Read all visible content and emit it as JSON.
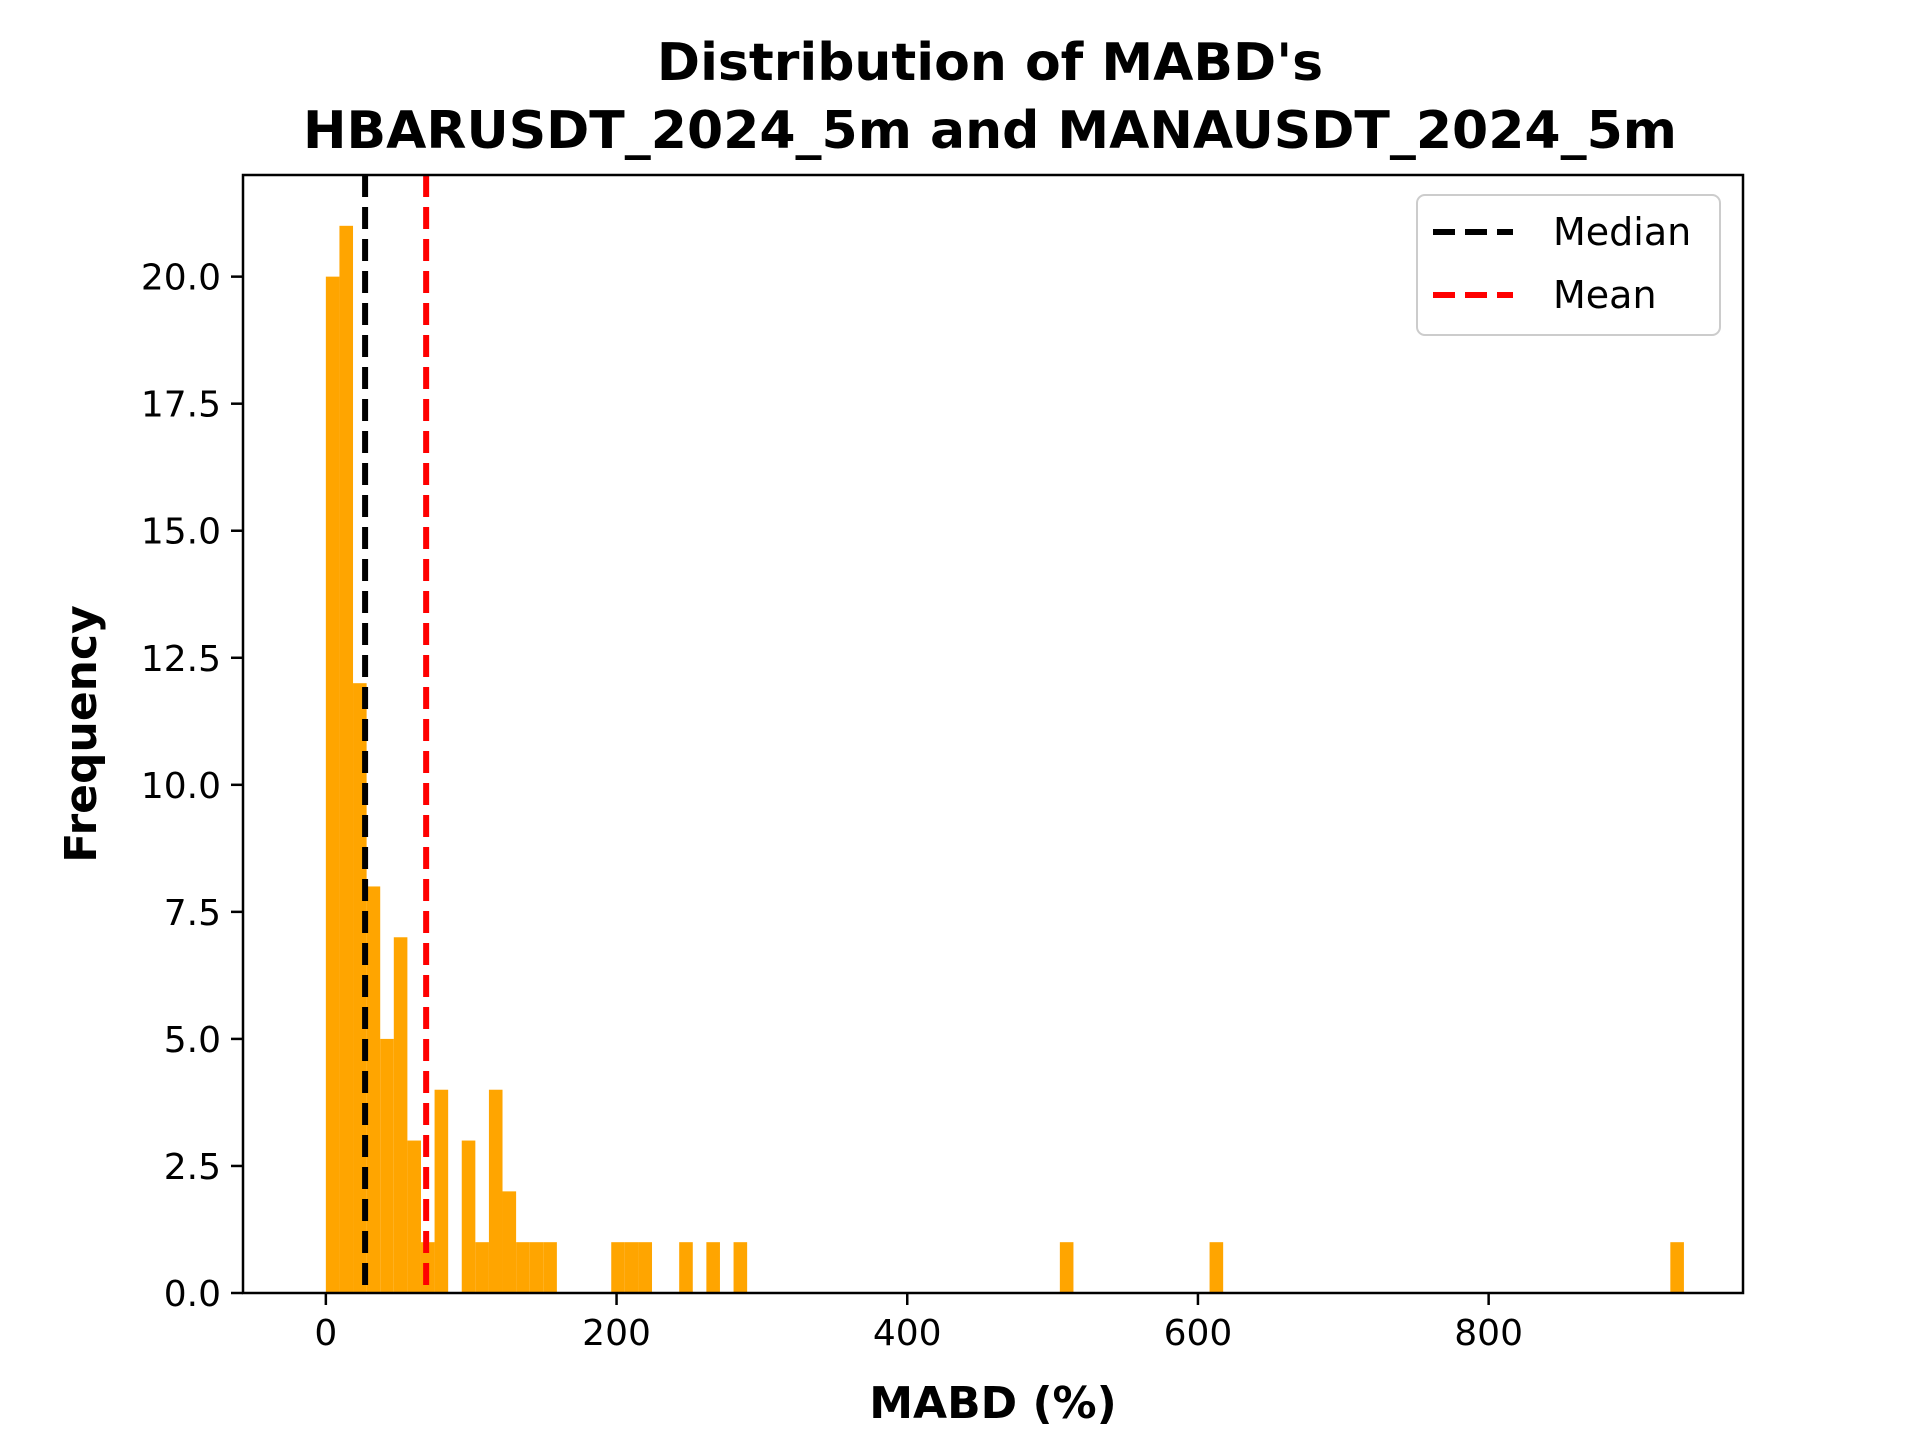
{
  "chart_data": {
    "type": "bar",
    "title_line1": "Distribution of MABD's",
    "title_line2": "HBARUSDT_2024_5m and MANAUSDT_2024_5m",
    "xlabel": "MABD (%)",
    "ylabel": "Frequency",
    "xlim": [
      -57,
      975
    ],
    "ylim": [
      0,
      22
    ],
    "x_ticks": [
      0,
      200,
      400,
      600,
      800
    ],
    "x_tick_labels": [
      "0",
      "200",
      "400",
      "600",
      "800"
    ],
    "y_ticks": [
      0,
      2.5,
      5,
      7.5,
      10,
      12.5,
      15,
      17.5,
      20
    ],
    "y_tick_labels": [
      "0.0",
      "2.5",
      "5.0",
      "7.5",
      "10.0",
      "12.5",
      "15.0",
      "17.5",
      "20.0"
    ],
    "bin_width": 9.35,
    "bar_color": "#FFA500",
    "bins": [
      {
        "x": 0.0,
        "count": 20
      },
      {
        "x": 9.35,
        "count": 21
      },
      {
        "x": 18.7,
        "count": 12
      },
      {
        "x": 28.05,
        "count": 8
      },
      {
        "x": 37.4,
        "count": 5
      },
      {
        "x": 46.75,
        "count": 7
      },
      {
        "x": 56.1,
        "count": 3
      },
      {
        "x": 65.45,
        "count": 1
      },
      {
        "x": 74.8,
        "count": 4
      },
      {
        "x": 93.5,
        "count": 3
      },
      {
        "x": 102.85,
        "count": 1
      },
      {
        "x": 112.2,
        "count": 4
      },
      {
        "x": 121.55,
        "count": 2
      },
      {
        "x": 130.9,
        "count": 1
      },
      {
        "x": 140.25,
        "count": 1
      },
      {
        "x": 149.6,
        "count": 1
      },
      {
        "x": 196.35,
        "count": 1
      },
      {
        "x": 205.7,
        "count": 1
      },
      {
        "x": 215.05,
        "count": 1
      },
      {
        "x": 243.1,
        "count": 1
      },
      {
        "x": 261.8,
        "count": 1
      },
      {
        "x": 280.5,
        "count": 1
      },
      {
        "x": 505.0,
        "count": 1
      },
      {
        "x": 608.0,
        "count": 1
      },
      {
        "x": 925.0,
        "count": 1
      }
    ],
    "lines": [
      {
        "name": "Median",
        "x": 27,
        "color": "#000000"
      },
      {
        "name": "Mean",
        "x": 69,
        "color": "#FF0000"
      }
    ],
    "legend": {
      "position": "upper right",
      "entries": [
        "Median",
        "Mean"
      ]
    }
  }
}
